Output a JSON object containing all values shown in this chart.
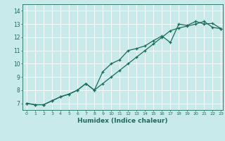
{
  "xlabel": "Humidex (Indice chaleur)",
  "ylabel": "",
  "bg_color": "#c8eaea",
  "grid_color": "#ffffff",
  "line_color": "#1a6b5a",
  "xlim": [
    -0.5,
    23.2
  ],
  "ylim": [
    6.5,
    14.5
  ],
  "xticks": [
    0,
    1,
    2,
    3,
    4,
    5,
    6,
    7,
    8,
    9,
    10,
    11,
    12,
    13,
    14,
    15,
    16,
    17,
    18,
    19,
    20,
    21,
    22,
    23
  ],
  "yticks": [
    7,
    8,
    9,
    10,
    11,
    12,
    13,
    14
  ],
  "line1_x": [
    0,
    1,
    2,
    3,
    4,
    5,
    6,
    7,
    8,
    9,
    10,
    11,
    12,
    13,
    14,
    15,
    16,
    17,
    18,
    19,
    20,
    21,
    22,
    23
  ],
  "line1_y": [
    7.0,
    6.9,
    6.9,
    7.2,
    7.5,
    7.7,
    8.0,
    8.5,
    8.0,
    9.4,
    10.0,
    10.3,
    11.0,
    11.15,
    11.35,
    11.75,
    12.1,
    11.6,
    13.0,
    12.9,
    13.2,
    13.0,
    13.05,
    12.65
  ],
  "line2_x": [
    0,
    1,
    2,
    3,
    4,
    5,
    6,
    7,
    8,
    9,
    10,
    11,
    12,
    13,
    14,
    15,
    16,
    17,
    18,
    19,
    20,
    21,
    22,
    23
  ],
  "line2_y": [
    7.0,
    6.9,
    6.9,
    7.2,
    7.5,
    7.7,
    8.0,
    8.5,
    8.0,
    8.5,
    9.0,
    9.5,
    10.0,
    10.5,
    11.0,
    11.5,
    12.0,
    12.5,
    12.7,
    12.85,
    13.0,
    13.2,
    12.75,
    12.65
  ]
}
